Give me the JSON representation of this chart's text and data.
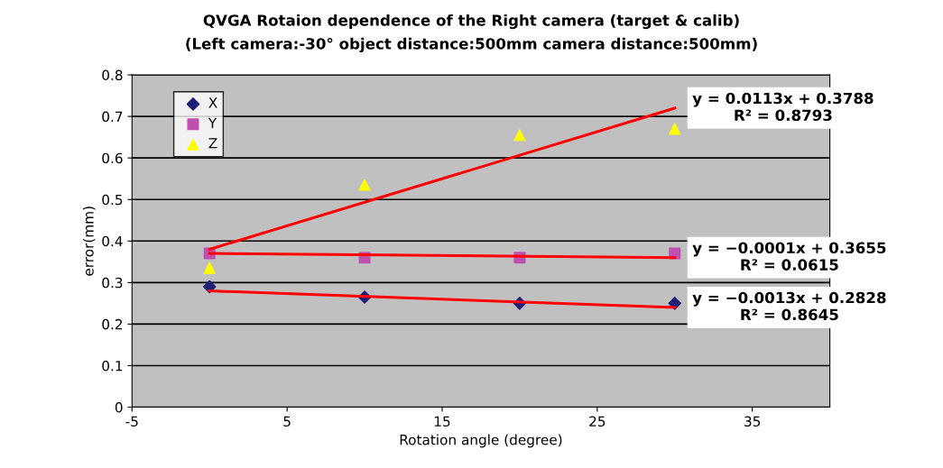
{
  "chart_data": {
    "type": "scatter",
    "title": "QVGA Rotaion dependence of the Right camera (target & calib)",
    "subtitle": "(Left camera:-30° object distance:500mm camera distance:500mm)",
    "xlabel": "Rotation angle (degree)",
    "ylabel": "error(mm)",
    "xlim": [
      -5,
      40
    ],
    "xticks": [
      -5,
      5,
      15,
      25,
      35
    ],
    "ylim": [
      0,
      0.8
    ],
    "yticks": [
      0,
      0.1,
      0.2,
      0.3,
      0.4,
      0.5,
      0.6,
      0.7,
      0.8
    ],
    "grid": "y",
    "legend": "top left",
    "series": [
      {
        "name": "X",
        "color": "#1f1f7a",
        "marker": "diamond",
        "x": [
          0,
          10,
          20,
          30
        ],
        "values": [
          0.29,
          0.265,
          0.25,
          0.25
        ]
      },
      {
        "name": "Y",
        "color": "#c050b0",
        "marker": "square",
        "x": [
          0,
          10,
          20,
          30
        ],
        "values": [
          0.37,
          0.36,
          0.36,
          0.37
        ]
      },
      {
        "name": "Z",
        "color": "#ffff00",
        "marker": "triangle",
        "x": [
          0,
          10,
          20,
          30
        ],
        "values": [
          0.335,
          0.535,
          0.655,
          0.67
        ]
      },
      {
        "type": "line",
        "color": "#ff0000",
        "x": [
          0,
          30
        ],
        "values": [
          0.38,
          0.72
        ]
      },
      {
        "type": "line",
        "color": "#ff0000",
        "x": [
          0,
          30
        ],
        "values": [
          0.37,
          0.36
        ]
      },
      {
        "type": "line",
        "color": "#ff0000",
        "x": [
          0,
          30
        ],
        "values": [
          0.28,
          0.24
        ]
      }
    ],
    "annotations": [
      "y = 0.0113x + 0.3788\nR² = 0.8793",
      "y = −0.0001x + 0.3655\nR² = 0.0615",
      "y = −0.0013x + 0.2828\nR² = 0.8645"
    ]
  }
}
